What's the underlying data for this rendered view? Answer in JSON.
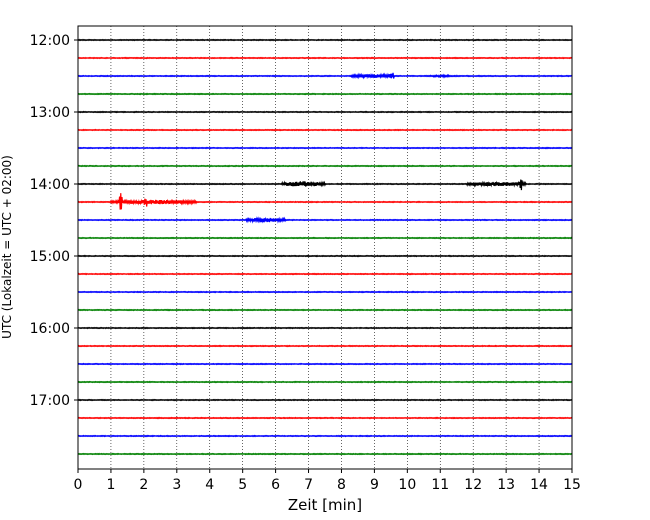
{
  "chart_data": {
    "type": "line",
    "title": "",
    "xlabel": "Zeit  [min]",
    "ylabel": "UTC (Lokalzeit = UTC + 02:00)",
    "xlim": [
      0,
      15
    ],
    "x_ticks": [
      "0",
      "1",
      "2",
      "3",
      "4",
      "5",
      "6",
      "7",
      "8",
      "9",
      "10",
      "11",
      "12",
      "13",
      "14",
      "15"
    ],
    "y_ticks": [
      "12:00",
      "13:00",
      "14:00",
      "15:00",
      "16:00",
      "17:00"
    ],
    "grid": "vertical dotted",
    "trace_interval_min": 15,
    "trace_start": "12:00",
    "trace_count": 24,
    "trace_colors": [
      "#000000",
      "#ff0000",
      "#0000ff",
      "#008000"
    ],
    "base_amplitude_minutes": 0.06,
    "events": [
      {
        "trace": "12:30",
        "color": "blue",
        "start_min": 8.3,
        "end_min": 9.6,
        "peak_amplitude_min": 0.4
      },
      {
        "trace": "12:30",
        "color": "blue",
        "start_min": 10.6,
        "end_min": 11.6,
        "peak_amplitude_min": 0.2
      },
      {
        "trace": "12:30",
        "color": "blue",
        "start_min": 9.45,
        "end_min": 9.6,
        "peak_amplitude_min": 1.0
      },
      {
        "trace": "14:15",
        "color": "red",
        "start_min": 1.0,
        "end_min": 3.6,
        "peak_amplitude_min": 0.5
      },
      {
        "trace": "14:15",
        "color": "red",
        "start_min": 1.25,
        "end_min": 1.35,
        "peak_amplitude_min": 2.0
      },
      {
        "trace": "14:15",
        "color": "red",
        "start_min": 2.0,
        "end_min": 2.1,
        "peak_amplitude_min": 1.5
      },
      {
        "trace": "14:30",
        "color": "blue",
        "start_min": 5.1,
        "end_min": 6.3,
        "peak_amplitude_min": 0.5
      },
      {
        "trace": "14:00",
        "color": "black",
        "start_min": 6.2,
        "end_min": 7.5,
        "peak_amplitude_min": 0.6
      },
      {
        "trace": "14:00",
        "color": "black",
        "start_min": 11.8,
        "end_min": 13.6,
        "peak_amplitude_min": 0.5
      },
      {
        "trace": "14:00",
        "color": "black",
        "start_min": 13.4,
        "end_min": 13.5,
        "peak_amplitude_min": 1.6
      }
    ]
  }
}
